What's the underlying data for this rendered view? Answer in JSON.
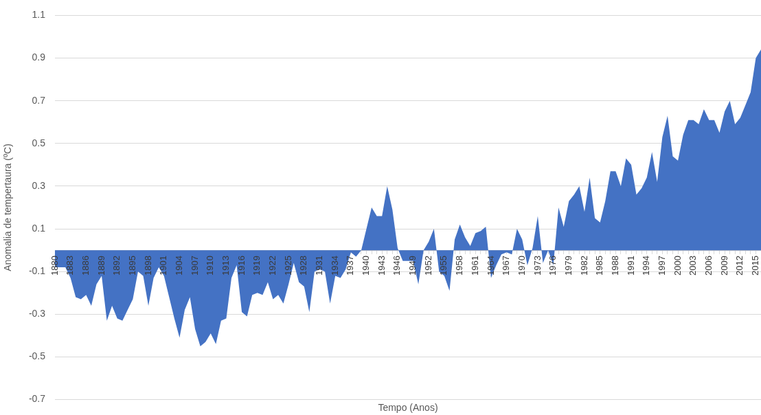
{
  "chart_data": {
    "type": "area",
    "xlabel": "Tempo (Anos)",
    "ylabel": "Anomalia de tempertaura (ºC)",
    "categories": [
      "1880",
      null,
      null,
      "1883",
      null,
      null,
      "1886",
      null,
      null,
      "1889",
      null,
      null,
      "1892",
      null,
      null,
      "1895",
      null,
      null,
      "1898",
      null,
      null,
      "1901",
      null,
      null,
      "1904",
      null,
      null,
      "1907",
      null,
      null,
      "1910",
      null,
      null,
      "1913",
      null,
      null,
      "1916",
      null,
      null,
      "1919",
      null,
      null,
      "1922",
      null,
      null,
      "1925",
      null,
      null,
      "1928",
      null,
      null,
      "1931",
      null,
      null,
      "1934",
      null,
      null,
      "1937",
      null,
      null,
      "1940",
      null,
      null,
      "1943",
      null,
      null,
      "1946",
      null,
      null,
      "1949",
      null,
      null,
      "1952",
      null,
      null,
      "1955",
      null,
      null,
      "1958",
      null,
      null,
      "1961",
      null,
      null,
      "1964",
      null,
      null,
      "1967",
      null,
      null,
      "1970",
      null,
      null,
      "1973",
      null,
      null,
      "1976",
      null,
      null,
      "1979",
      null,
      null,
      "1982",
      null,
      null,
      "1985",
      null,
      null,
      "1988",
      null,
      null,
      "1991",
      null,
      null,
      "1994",
      null,
      null,
      "1997",
      null,
      null,
      "2000",
      null,
      null,
      "2003",
      null,
      null,
      "2006",
      null,
      null,
      "2009",
      null,
      null,
      "2012",
      null,
      null,
      "2015",
      null
    ],
    "values": [
      -0.08,
      -0.08,
      -0.08,
      -0.13,
      -0.22,
      -0.23,
      -0.21,
      -0.26,
      -0.16,
      -0.12,
      -0.33,
      -0.26,
      -0.32,
      -0.33,
      -0.28,
      -0.23,
      -0.1,
      -0.12,
      -0.26,
      -0.13,
      -0.08,
      -0.12,
      -0.22,
      -0.32,
      -0.41,
      -0.28,
      -0.22,
      -0.37,
      -0.45,
      -0.43,
      -0.39,
      -0.44,
      -0.33,
      -0.32,
      -0.13,
      -0.07,
      -0.29,
      -0.31,
      -0.21,
      -0.2,
      -0.21,
      -0.15,
      -0.23,
      -0.21,
      -0.25,
      -0.16,
      -0.06,
      -0.15,
      -0.17,
      -0.29,
      -0.1,
      -0.09,
      -0.1,
      -0.25,
      -0.12,
      -0.13,
      -0.09,
      -0.01,
      -0.03,
      0,
      0.1,
      0.2,
      0.16,
      0.16,
      0.3,
      0.19,
      0.01,
      -0.05,
      -0.05,
      -0.05,
      -0.16,
      0,
      0.04,
      0.1,
      -0.1,
      -0.12,
      -0.19,
      0.05,
      0.12,
      0.06,
      0.02,
      0.08,
      0.09,
      0.11,
      -0.13,
      -0.07,
      -0.02,
      -0.01,
      -0.02,
      0.1,
      0.05,
      -0.07,
      0.01,
      0.16,
      -0.06,
      0,
      -0.07,
      0.2,
      0.11,
      0.23,
      0.26,
      0.3,
      0.18,
      0.34,
      0.15,
      0.13,
      0.23,
      0.37,
      0.37,
      0.3,
      0.43,
      0.4,
      0.26,
      0.29,
      0.34,
      0.46,
      0.32,
      0.53,
      0.63,
      0.44,
      0.42,
      0.54,
      0.61,
      0.61,
      0.59,
      0.66,
      0.61,
      0.61,
      0.55,
      0.65,
      0.7,
      0.59,
      0.62,
      0.68,
      0.74,
      0.9,
      0.94
    ],
    "color": "#4472c4",
    "ylim": [
      -0.7,
      1.1
    ],
    "yticks": [
      -0.7,
      -0.5,
      -0.3,
      -0.1,
      0.1,
      0.3,
      0.5,
      0.7,
      0.9,
      1.1
    ],
    "grid": "y"
  }
}
